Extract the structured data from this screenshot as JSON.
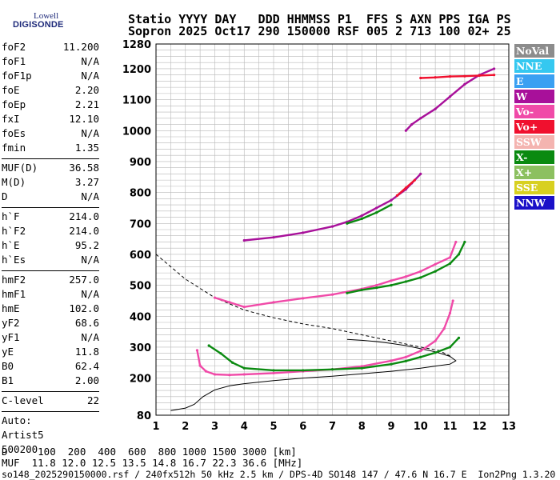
{
  "logo": {
    "line1": "Lowell",
    "line2": "DIGISONDE"
  },
  "header": {
    "line1": "Statio YYYY DAY   DDD HHMMSS P1  FFS S AXN PPS IGA PS",
    "line2": "Sopron 2025 Oct17 290 150000 RSF 005 2 713 100 02+ 25"
  },
  "params": {
    "group1": [
      {
        "name": "foF2",
        "value": "11.200"
      },
      {
        "name": "foF1",
        "value": "N/A"
      },
      {
        "name": "foF1p",
        "value": "N/A"
      },
      {
        "name": "foE",
        "value": "2.20"
      },
      {
        "name": "foEp",
        "value": "2.21"
      },
      {
        "name": "fxI",
        "value": "12.10"
      },
      {
        "name": "foEs",
        "value": "N/A"
      },
      {
        "name": "fmin",
        "value": "1.35"
      }
    ],
    "group2": [
      {
        "name": "MUF(D)",
        "value": "36.58"
      },
      {
        "name": "M(D)",
        "value": "3.27"
      },
      {
        "name": "D",
        "value": "N/A"
      }
    ],
    "group3": [
      {
        "name": "h`F",
        "value": "214.0"
      },
      {
        "name": "h`F2",
        "value": "214.0"
      },
      {
        "name": "h`E",
        "value": "95.2"
      },
      {
        "name": "h`Es",
        "value": "N/A"
      }
    ],
    "group4": [
      {
        "name": "hmF2",
        "value": "257.0"
      },
      {
        "name": "hmF1",
        "value": "N/A"
      },
      {
        "name": "hmE",
        "value": "102.0"
      },
      {
        "name": "yF2",
        "value": "68.6"
      },
      {
        "name": "yF1",
        "value": "N/A"
      },
      {
        "name": "yE",
        "value": "11.8"
      },
      {
        "name": "B0",
        "value": "62.4"
      },
      {
        "name": "B1",
        "value": "2.00"
      }
    ],
    "group5": [
      {
        "name": "C-level",
        "value": "22"
      }
    ],
    "auto_label": "Auto:",
    "artist": "Artist5",
    "artist_code": "500200"
  },
  "legend": [
    {
      "label": "NoVal",
      "color": "#8c8c8c"
    },
    {
      "label": "NNE",
      "color": "#35c8f0"
    },
    {
      "label": "E",
      "color": "#3aa0f2"
    },
    {
      "label": "W",
      "color": "#a8109a"
    },
    {
      "label": "Vo-",
      "color": "#f04aa8"
    },
    {
      "label": "Vo+",
      "color": "#f0102e"
    },
    {
      "label": "SSW",
      "color": "#f4b4b0"
    },
    {
      "label": "X-",
      "color": "#0a8a10"
    },
    {
      "label": "X+",
      "color": "#8cc060"
    },
    {
      "label": "SSE",
      "color": "#d8d020"
    },
    {
      "label": "NNW",
      "color": "#1a10c8"
    }
  ],
  "footer": {
    "d_line": "D     100  200  400  600  800 1000 1500 3000 [km]",
    "muf_line": "MUF  11.8 12.0 12.5 13.5 14.8 16.7 22.3 36.6 [MHz]",
    "info_line": "so148_2025290150000.rsf / 240fx512h 50 kHz 2.5 km / DPS-4D SO148 147 / 47.6 N 16.7 E  Ion2Png 1.3.20"
  },
  "chart_data": {
    "type": "scatter",
    "xlim": [
      1,
      13
    ],
    "ylim": [
      80,
      1280
    ],
    "xticks": [
      "1",
      "2",
      "3",
      "4",
      "5",
      "6",
      "7",
      "8",
      "9",
      "10",
      "11",
      "12",
      "13"
    ],
    "yticks": [
      "80",
      "200",
      "300",
      "400",
      "500",
      "600",
      "700",
      "800",
      "900",
      "1000",
      "1100",
      "1200",
      "1280"
    ],
    "grid": true,
    "legend_position": "right",
    "series": [
      {
        "color": "#f04aa8",
        "points": [
          [
            2.4,
            290
          ],
          [
            2.5,
            240
          ],
          [
            2.7,
            222
          ],
          [
            3.0,
            212
          ],
          [
            3.5,
            210
          ],
          [
            4.0,
            212
          ],
          [
            5.0,
            216
          ],
          [
            6.0,
            222
          ],
          [
            7.0,
            228
          ],
          [
            8.0,
            238
          ],
          [
            9.0,
            256
          ],
          [
            9.5,
            268
          ],
          [
            10.0,
            288
          ],
          [
            10.5,
            320
          ],
          [
            10.8,
            360
          ],
          [
            11.0,
            410
          ],
          [
            11.1,
            450
          ]
        ]
      },
      {
        "color": "#0a8a10",
        "points": [
          [
            2.8,
            305
          ],
          [
            3.2,
            280
          ],
          [
            3.6,
            250
          ],
          [
            4.0,
            232
          ],
          [
            5.0,
            225
          ],
          [
            6.0,
            225
          ],
          [
            7.0,
            228
          ],
          [
            8.0,
            232
          ],
          [
            9.0,
            245
          ],
          [
            9.5,
            255
          ],
          [
            10.0,
            268
          ],
          [
            10.5,
            282
          ],
          [
            11.0,
            300
          ],
          [
            11.3,
            330
          ]
        ]
      },
      {
        "color": "#f04aa8",
        "points": [
          [
            3.0,
            460
          ],
          [
            3.5,
            445
          ],
          [
            4.0,
            430
          ],
          [
            5.0,
            445
          ],
          [
            6.0,
            458
          ],
          [
            7.0,
            470
          ],
          [
            8.0,
            488
          ],
          [
            8.5,
            500
          ],
          [
            9.0,
            515
          ],
          [
            9.5,
            528
          ],
          [
            10.0,
            545
          ],
          [
            10.5,
            568
          ],
          [
            11.0,
            590
          ],
          [
            11.2,
            640
          ]
        ]
      },
      {
        "color": "#0a8a10",
        "points": [
          [
            7.5,
            475
          ],
          [
            8.0,
            485
          ],
          [
            8.5,
            492
          ],
          [
            9.0,
            500
          ],
          [
            9.5,
            512
          ],
          [
            10.0,
            525
          ],
          [
            10.5,
            545
          ],
          [
            11.0,
            570
          ],
          [
            11.3,
            600
          ],
          [
            11.5,
            640
          ]
        ]
      },
      {
        "color": "#a8109a",
        "points": [
          [
            4.0,
            645
          ],
          [
            5.0,
            655
          ],
          [
            6.0,
            670
          ],
          [
            7.0,
            690
          ],
          [
            7.5,
            705
          ],
          [
            8.0,
            725
          ],
          [
            8.5,
            750
          ],
          [
            9.0,
            775
          ],
          [
            9.5,
            810
          ],
          [
            9.7,
            830
          ],
          [
            10.0,
            860
          ]
        ]
      },
      {
        "color": "#0a8a10",
        "points": [
          [
            7.5,
            700
          ],
          [
            8.0,
            715
          ],
          [
            8.5,
            735
          ],
          [
            9.0,
            760
          ]
        ]
      },
      {
        "color": "#f0102e",
        "points": [
          [
            9.2,
            790
          ],
          [
            9.5,
            815
          ],
          [
            9.8,
            840
          ]
        ]
      },
      {
        "color": "#a8109a",
        "points": [
          [
            9.5,
            1000
          ],
          [
            9.7,
            1020
          ],
          [
            10.0,
            1040
          ],
          [
            10.5,
            1070
          ],
          [
            11.0,
            1110
          ],
          [
            11.5,
            1150
          ],
          [
            12.0,
            1180
          ],
          [
            12.5,
            1200
          ]
        ]
      },
      {
        "color": "#f0102e",
        "points": [
          [
            10.0,
            1170
          ],
          [
            10.5,
            1172
          ],
          [
            11.0,
            1175
          ],
          [
            11.5,
            1176
          ],
          [
            12.0,
            1178
          ],
          [
            12.5,
            1180
          ]
        ]
      }
    ],
    "profile_dashed": [
      [
        1.0,
        600
      ],
      [
        1.5,
        560
      ],
      [
        2.0,
        520
      ],
      [
        2.5,
        490
      ],
      [
        3.0,
        460
      ],
      [
        3.5,
        440
      ],
      [
        4.0,
        420
      ],
      [
        5.0,
        395
      ],
      [
        6.0,
        375
      ],
      [
        7.0,
        360
      ],
      [
        8.0,
        340
      ],
      [
        9.0,
        320
      ],
      [
        10.0,
        300
      ],
      [
        10.6,
        290
      ],
      [
        11.0,
        272
      ]
    ],
    "profile_solid": [
      [
        1.5,
        95
      ],
      [
        2.0,
        103
      ],
      [
        2.3,
        115
      ],
      [
        2.6,
        140
      ],
      [
        3.0,
        162
      ],
      [
        3.5,
        175
      ],
      [
        4.0,
        182
      ],
      [
        5.0,
        192
      ],
      [
        6.0,
        200
      ],
      [
        7.0,
        206
      ],
      [
        8.0,
        214
      ],
      [
        9.0,
        222
      ],
      [
        10.0,
        232
      ],
      [
        10.6,
        240
      ],
      [
        11.0,
        245
      ],
      [
        11.2,
        256
      ],
      [
        11.0,
        270
      ],
      [
        10.5,
        285
      ],
      [
        10.0,
        295
      ],
      [
        9.5,
        305
      ],
      [
        9.0,
        312
      ],
      [
        8.5,
        318
      ],
      [
        8.0,
        322
      ],
      [
        7.5,
        325
      ]
    ]
  }
}
